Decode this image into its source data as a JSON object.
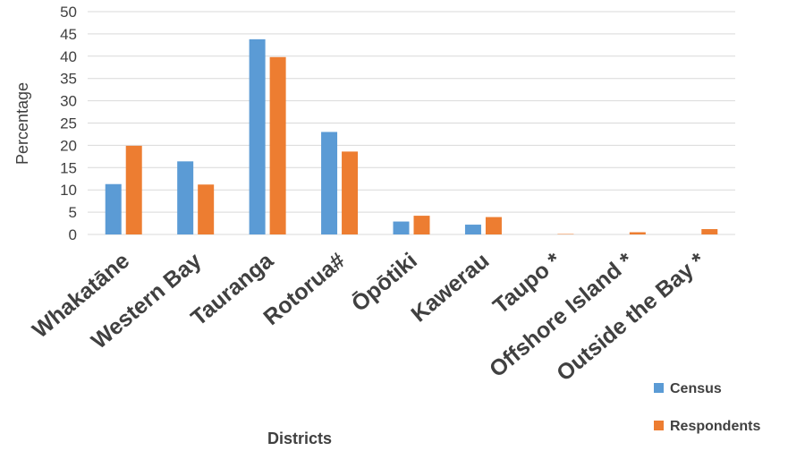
{
  "chart_data": {
    "type": "bar",
    "title": "",
    "xlabel": "Districts",
    "ylabel": "Percentage",
    "ylim": [
      0,
      50
    ],
    "yticks": [
      0,
      5,
      10,
      15,
      20,
      25,
      30,
      35,
      40,
      45,
      50
    ],
    "grid": true,
    "legend_position": "bottom-right",
    "categories": [
      "Whakatāne",
      "Western Bay",
      "Tauranga",
      "Rotorua#",
      "Ōpōtiki",
      "Kawerau",
      "Taupo *",
      "Offshore Island *",
      "Outside the Bay *"
    ],
    "series": [
      {
        "name": "Census",
        "color": "#5B9BD5",
        "values": [
          11.3,
          16.4,
          43.8,
          23.0,
          2.9,
          2.2,
          0,
          0,
          0
        ]
      },
      {
        "name": "Respondents",
        "color": "#ED7D31",
        "values": [
          19.9,
          11.2,
          39.8,
          18.6,
          4.2,
          3.9,
          0.1,
          0.5,
          1.2
        ]
      }
    ]
  }
}
